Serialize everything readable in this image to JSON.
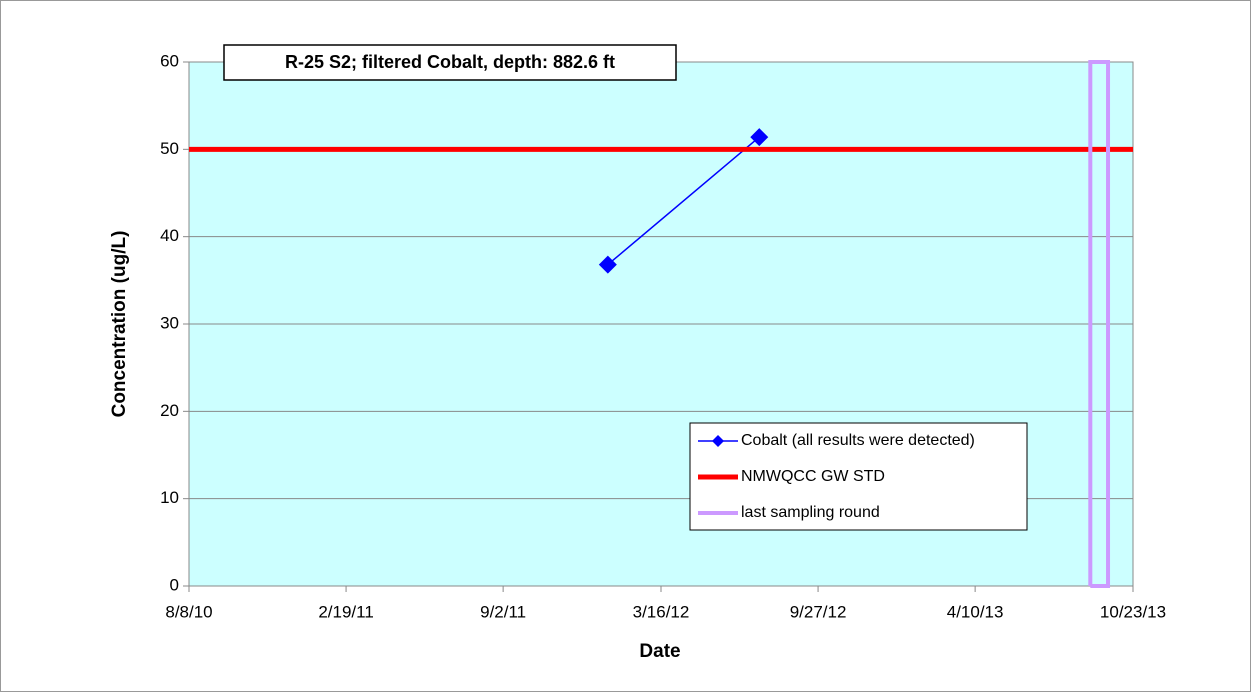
{
  "chart_data": {
    "type": "line",
    "title": "R-25 S2;  filtered Cobalt, depth: 882.6 ft",
    "x_label": "Date",
    "y_label": "Concentration (ug/L)",
    "xlim": [
      "2010-08-08",
      "2013-10-23"
    ],
    "xticks": [
      {
        "value": "2010-08-08",
        "label": "8/8/10"
      },
      {
        "value": "2011-02-19",
        "label": "2/19/11"
      },
      {
        "value": "2011-09-02",
        "label": "9/2/11"
      },
      {
        "value": "2012-03-16",
        "label": "3/16/12"
      },
      {
        "value": "2012-09-27",
        "label": "9/27/12"
      },
      {
        "value": "2013-04-10",
        "label": "4/10/13"
      },
      {
        "value": "2013-10-23",
        "label": "10/23/13"
      }
    ],
    "ylim": [
      0,
      60
    ],
    "yticks": [
      0,
      10,
      20,
      30,
      40,
      50,
      60
    ],
    "grid": true,
    "legend": "lower right",
    "series": [
      {
        "name": "Cobalt (all results were detected)",
        "color": "#0000ff",
        "marker": "diamond",
        "x": [
          "2012-01-10",
          "2012-07-16"
        ],
        "values": [
          36.8,
          51.4
        ]
      },
      {
        "name": "NMWQCC GW STD",
        "color": "#ff0000",
        "x": [
          "2010-08-08",
          "2013-10-23"
        ],
        "values": [
          50,
          50
        ]
      },
      {
        "name": "last sampling round",
        "color": "#cc99ff",
        "x": [
          "2013-08-31",
          "2013-08-31",
          "2013-09-22",
          "2013-09-22",
          "2013-08-31"
        ],
        "values": [
          0,
          60,
          60,
          0,
          0
        ]
      }
    ]
  }
}
